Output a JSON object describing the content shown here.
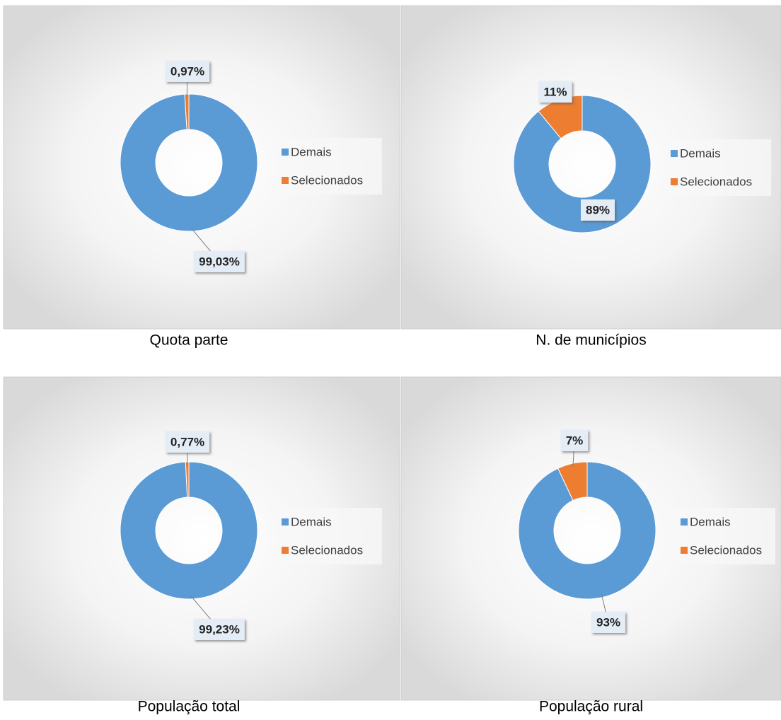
{
  "chart_data": [
    {
      "type": "pie",
      "donut": true,
      "title": "Quota parte",
      "categories": [
        "Demais",
        "Selecionados"
      ],
      "values": [
        99.03,
        0.97
      ],
      "value_labels": [
        "99,03%",
        "0,97%"
      ],
      "colors": [
        "#5b9bd5",
        "#ed7d31"
      ]
    },
    {
      "type": "pie",
      "donut": true,
      "title": "N. de municípios",
      "categories": [
        "Demais",
        "Selecionados"
      ],
      "values": [
        89,
        11
      ],
      "value_labels": [
        "89%",
        "11%"
      ],
      "colors": [
        "#5b9bd5",
        "#ed7d31"
      ]
    },
    {
      "type": "pie",
      "donut": true,
      "title": "População total",
      "categories": [
        "Demais",
        "Selecionados"
      ],
      "values": [
        99.23,
        0.77
      ],
      "value_labels": [
        "99,23%",
        "0,77%"
      ],
      "colors": [
        "#5b9bd5",
        "#ed7d31"
      ]
    },
    {
      "type": "pie",
      "donut": true,
      "title": "População rural",
      "categories": [
        "Demais",
        "Selecionados"
      ],
      "values": [
        93,
        7
      ],
      "value_labels": [
        "93%",
        "7%"
      ],
      "colors": [
        "#5b9bd5",
        "#ed7d31"
      ]
    }
  ]
}
